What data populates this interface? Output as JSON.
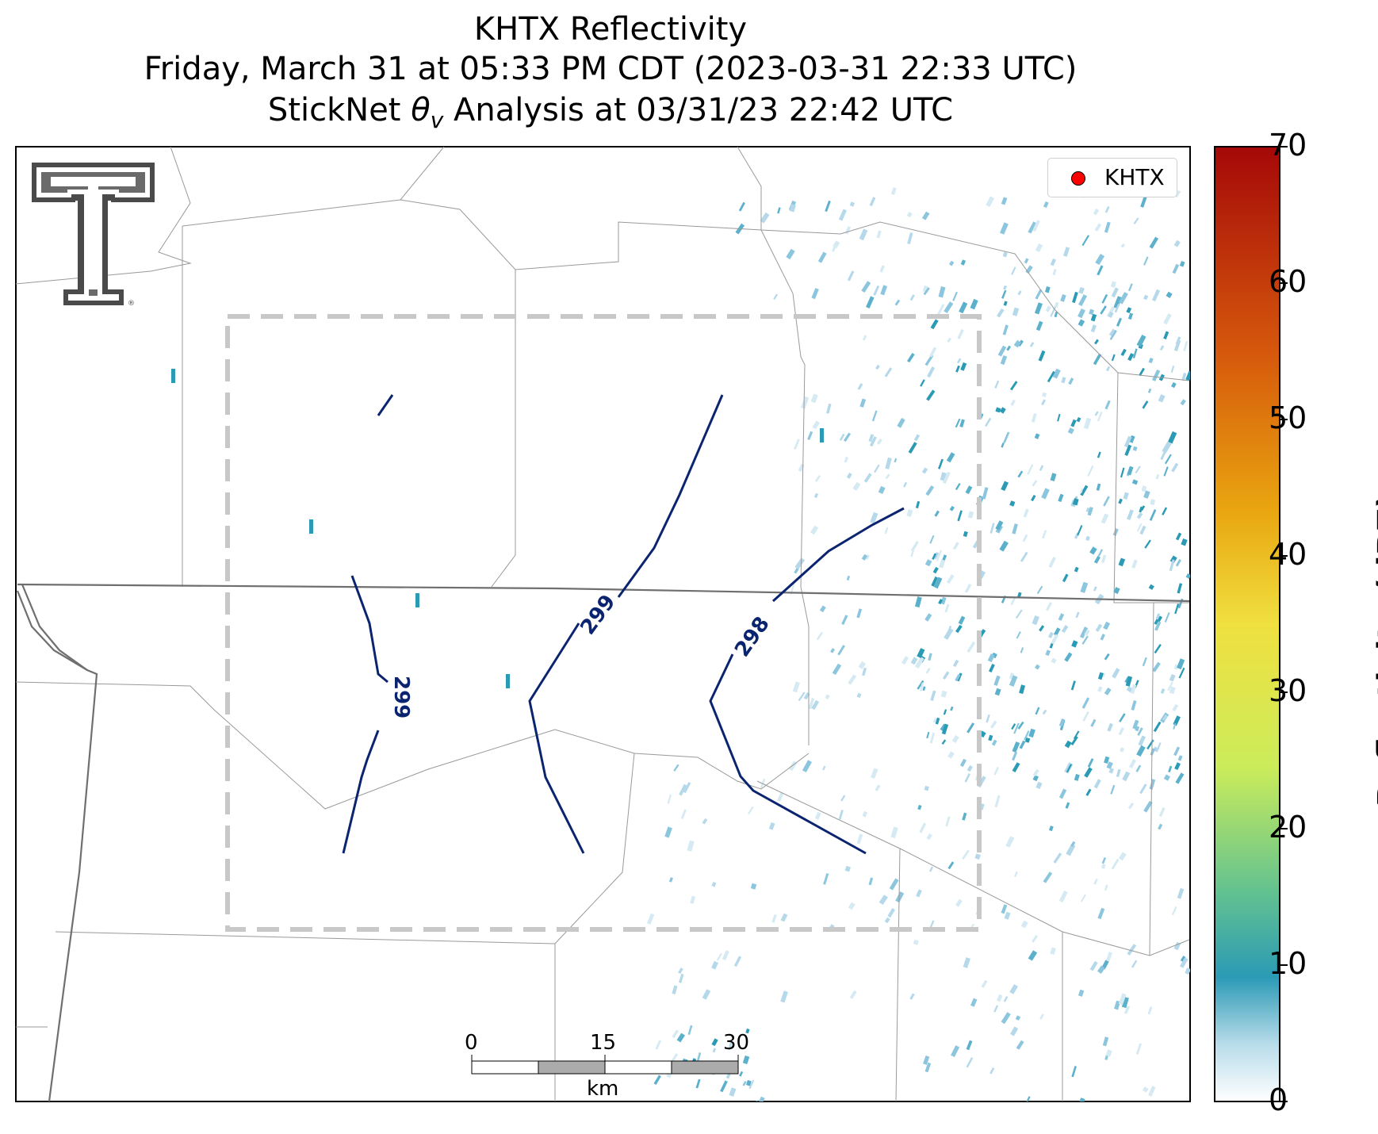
{
  "title": {
    "line1": "KHTX Reflectivity",
    "line2": "Friday, March 31 at 05:33 PM CDT (2023-03-31 22:33 UTC)",
    "line3_prefix": "StickNet ",
    "line3_symbol": "θ",
    "line3_sub": "v",
    "line3_suffix": " Analysis at 03/31/23 22:42 UTC"
  },
  "legend": {
    "label": "KHTX",
    "marker_color": "#ff0000"
  },
  "colorbar": {
    "title": "Reflectivity (dBZ)",
    "ticks": [
      "0",
      "10",
      "20",
      "30",
      "40",
      "50",
      "60",
      "70"
    ],
    "range": [
      0,
      70
    ]
  },
  "contours": [
    {
      "label": "299"
    },
    {
      "label": "299"
    },
    {
      "label": "298"
    }
  ],
  "scale_bar": {
    "ticks": [
      "0",
      "15",
      "30"
    ],
    "unit": "km"
  },
  "colors": {
    "contour": "#0b2470",
    "box": "#c8c8c8",
    "state_border": "#6f6f6f",
    "county": "#9a9a9a"
  }
}
